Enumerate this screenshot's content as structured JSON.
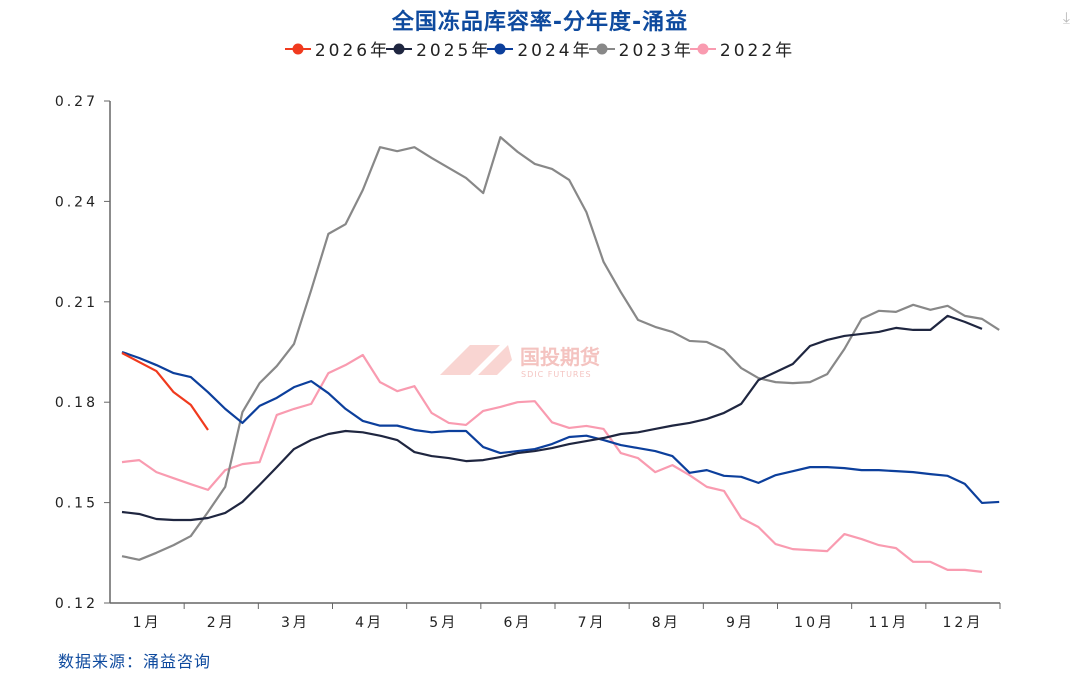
{
  "chart_data": {
    "type": "line",
    "title": "全国冻品库容率-分年度-涌益",
    "xlabel": "",
    "ylabel": "",
    "ylim": [
      0.12,
      0.27
    ],
    "yticks": [
      "0.12",
      "0.15",
      "0.18",
      "0.21",
      "0.24",
      "0.27"
    ],
    "xticks": [
      "1月",
      "2月",
      "3月",
      "4月",
      "5月",
      "6月",
      "7月",
      "8月",
      "9月",
      "10月",
      "11月",
      "12月"
    ],
    "x_unit": "week",
    "legend_position": "top",
    "grid": false,
    "series": [
      {
        "name": "2026年",
        "color": "#f03a1e",
        "values": [
          0.1947,
          0.192,
          0.1893,
          0.183,
          0.1792,
          0.1717
        ]
      },
      {
        "name": "2025年",
        "color": "#1f2640",
        "values": [
          0.1472,
          0.1466,
          0.1451,
          0.1448,
          0.1448,
          0.1454,
          0.1469,
          0.1502,
          0.1553,
          0.1606,
          0.166,
          0.1687,
          0.1705,
          0.1714,
          0.171,
          0.17,
          0.1687,
          0.1651,
          0.1639,
          0.1633,
          0.1624,
          0.1627,
          0.1636,
          0.1648,
          0.1654,
          0.1663,
          0.1675,
          0.1684,
          0.1693,
          0.1705,
          0.171,
          0.172,
          0.173,
          0.1738,
          0.175,
          0.1768,
          0.1795,
          0.1866,
          0.189,
          0.1914,
          0.1968,
          0.1986,
          0.1998,
          0.2004,
          0.201,
          0.2022,
          0.2016,
          0.2016,
          0.2058,
          0.204,
          0.2019
        ]
      },
      {
        "name": "2024年",
        "color": "#0c3f9c",
        "values": [
          0.195,
          0.1932,
          0.1911,
          0.1887,
          0.1875,
          0.183,
          0.178,
          0.1738,
          0.1789,
          0.1813,
          0.1845,
          0.1863,
          0.1827,
          0.178,
          0.1744,
          0.173,
          0.173,
          0.1717,
          0.171,
          0.1714,
          0.1714,
          0.1666,
          0.1648,
          0.1654,
          0.166,
          0.1675,
          0.1696,
          0.17,
          0.1687,
          0.1672,
          0.1663,
          0.1654,
          0.1639,
          0.1589,
          0.1597,
          0.158,
          0.1577,
          0.1559,
          0.1582,
          0.1594,
          0.1606,
          0.1606,
          0.1603,
          0.1597,
          0.1597,
          0.1594,
          0.1591,
          0.1585,
          0.158,
          0.1556,
          0.1499,
          0.1502
        ]
      },
      {
        "name": "2023年",
        "color": "#888888",
        "values": [
          0.134,
          0.1329,
          0.135,
          0.1373,
          0.14,
          0.1472,
          0.1547,
          0.177,
          0.1857,
          0.1908,
          0.1974,
          0.2135,
          0.2303,
          0.2332,
          0.2434,
          0.2562,
          0.255,
          0.2562,
          0.253,
          0.25,
          0.247,
          0.2425,
          0.2592,
          0.2548,
          0.2512,
          0.2497,
          0.2464,
          0.2368,
          0.2219,
          0.2129,
          0.2046,
          0.2025,
          0.201,
          0.1983,
          0.198,
          0.1956,
          0.1902,
          0.1872,
          0.186,
          0.1857,
          0.186,
          0.1884,
          0.1959,
          0.2049,
          0.2073,
          0.207,
          0.2091,
          0.2076,
          0.2088,
          0.2058,
          0.2049,
          0.2016
        ]
      },
      {
        "name": "2022年",
        "color": "#f99bb0",
        "values": [
          0.1621,
          0.1627,
          0.1591,
          0.1573,
          0.1555,
          0.1538,
          0.1597,
          0.1615,
          0.1621,
          0.1762,
          0.178,
          0.1795,
          0.1887,
          0.1911,
          0.1941,
          0.186,
          0.1833,
          0.1848,
          0.1768,
          0.1738,
          0.1732,
          0.1774,
          0.1786,
          0.18,
          0.1803,
          0.174,
          0.1723,
          0.1729,
          0.172,
          0.1648,
          0.1633,
          0.1591,
          0.1612,
          0.1582,
          0.1547,
          0.1535,
          0.1454,
          0.1427,
          0.1376,
          0.1361,
          0.1358,
          0.1355,
          0.1406,
          0.1391,
          0.1373,
          0.1364,
          0.1323,
          0.1323,
          0.1299,
          0.1299,
          0.1293
        ]
      }
    ]
  },
  "source": "数据来源：涌益咨询",
  "watermark": {
    "cn": "国投期货",
    "en": "SDIC FUTURES"
  },
  "download_icon": "download-icon"
}
